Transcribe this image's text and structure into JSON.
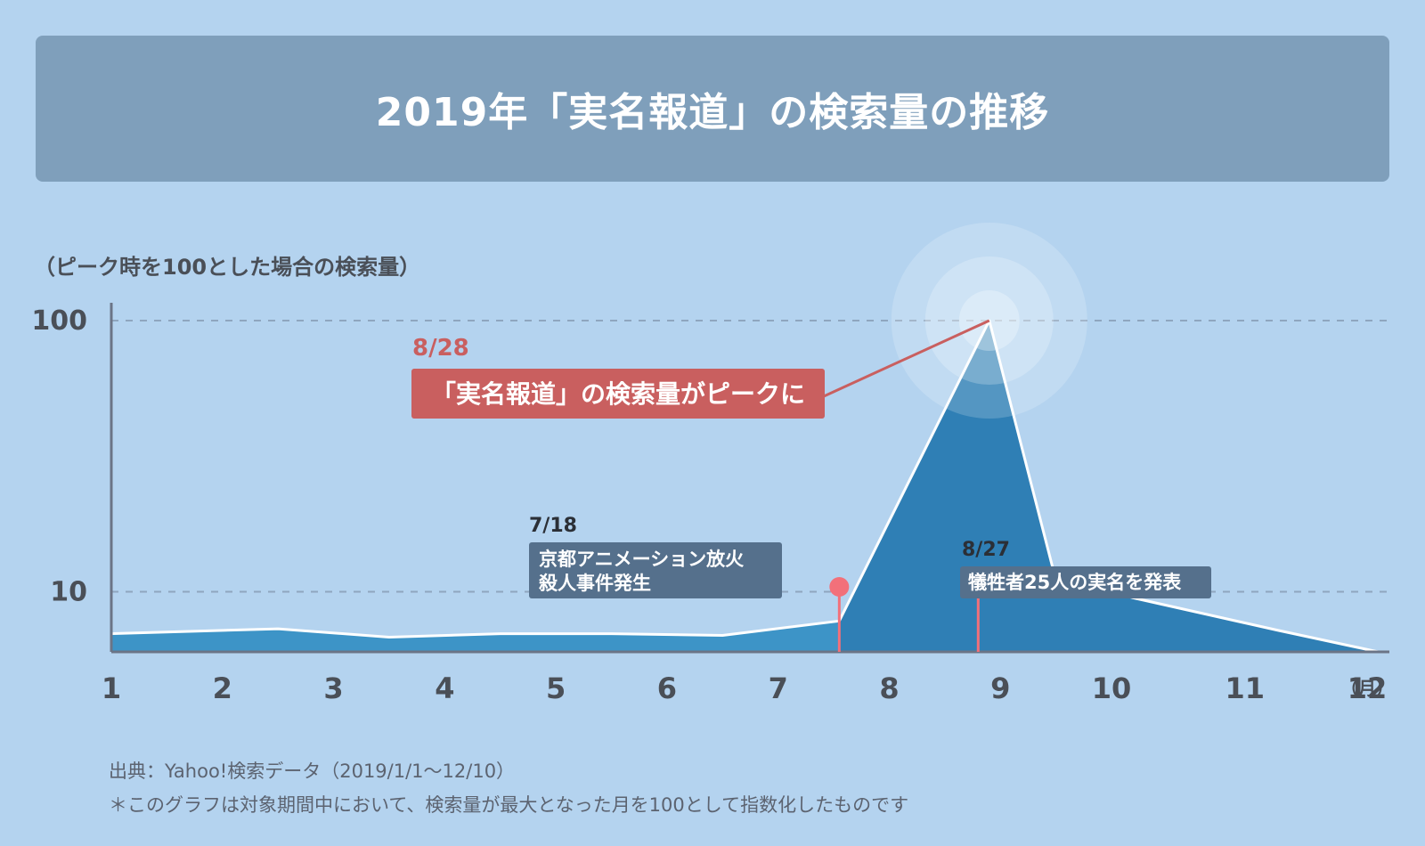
{
  "header": {
    "title": "2019年「実名報道」の検索量の推移"
  },
  "y_axis_note": "（ピーク時を100とした場合の検索量）",
  "footnotes": {
    "source": "出典：Yahoo!検索データ（2019/1/1〜12/10）",
    "note": "＊このグラフは対象期間中において、検索量が最大となった月を100として指数化したものです"
  },
  "chart_data": {
    "type": "area",
    "y_scale": "log",
    "ylim": [
      6,
      100
    ],
    "xlim": [
      1,
      12.5
    ],
    "grid_lines_dashed": [
      10,
      100
    ],
    "x_ticks": [
      {
        "x": 1,
        "label": "1"
      },
      {
        "x": 2,
        "label": "2"
      },
      {
        "x": 3,
        "label": "3"
      },
      {
        "x": 4,
        "label": "4"
      },
      {
        "x": 5,
        "label": "5"
      },
      {
        "x": 6,
        "label": "6"
      },
      {
        "x": 7,
        "label": "7"
      },
      {
        "x": 8,
        "label": "8"
      },
      {
        "x": 9,
        "label": "9"
      },
      {
        "x": 10,
        "label": "10"
      },
      {
        "x": 11.2,
        "label": "11"
      },
      {
        "x": 12.3,
        "label": "12"
      }
    ],
    "x_unit_label": "（月）",
    "y_ticks": [
      {
        "y": 100,
        "label": "100"
      },
      {
        "y": 10,
        "label": "10"
      }
    ],
    "points": [
      {
        "x": 1,
        "y": 7.0
      },
      {
        "x": 2.5,
        "y": 7.3
      },
      {
        "x": 3.5,
        "y": 6.8
      },
      {
        "x": 4.5,
        "y": 7.0
      },
      {
        "x": 5.5,
        "y": 7.0
      },
      {
        "x": 6.5,
        "y": 6.9
      },
      {
        "x": 7.55,
        "y": 7.8
      },
      {
        "x": 8.9,
        "y": 100
      },
      {
        "x": 9.5,
        "y": 11
      },
      {
        "x": 11.5,
        "y": 7.2
      },
      {
        "x": 12.4,
        "y": 6.0
      }
    ],
    "colors": {
      "area_pre": "#3d94c7",
      "area_post": "#2f7fb5",
      "line": "#ffffff",
      "grid": "#8fa6bf",
      "axis": "#6b7486",
      "peak_callout": "#c95f5f",
      "pin": "#f2707a",
      "dark_label": "#55708c"
    },
    "annotations": [
      {
        "id": "peak",
        "x": 8.9,
        "y": 100,
        "date": "8/28",
        "text": "「実名報道」の検索量がピークに"
      },
      {
        "id": "kyoani",
        "x": 7.55,
        "date": "7/18",
        "lines": [
          "京都アニメーション放火",
          "殺人事件発生"
        ]
      },
      {
        "id": "names",
        "x": 8.8,
        "date": "8/27",
        "text": "犠牲者25人の実名を発表"
      }
    ]
  }
}
